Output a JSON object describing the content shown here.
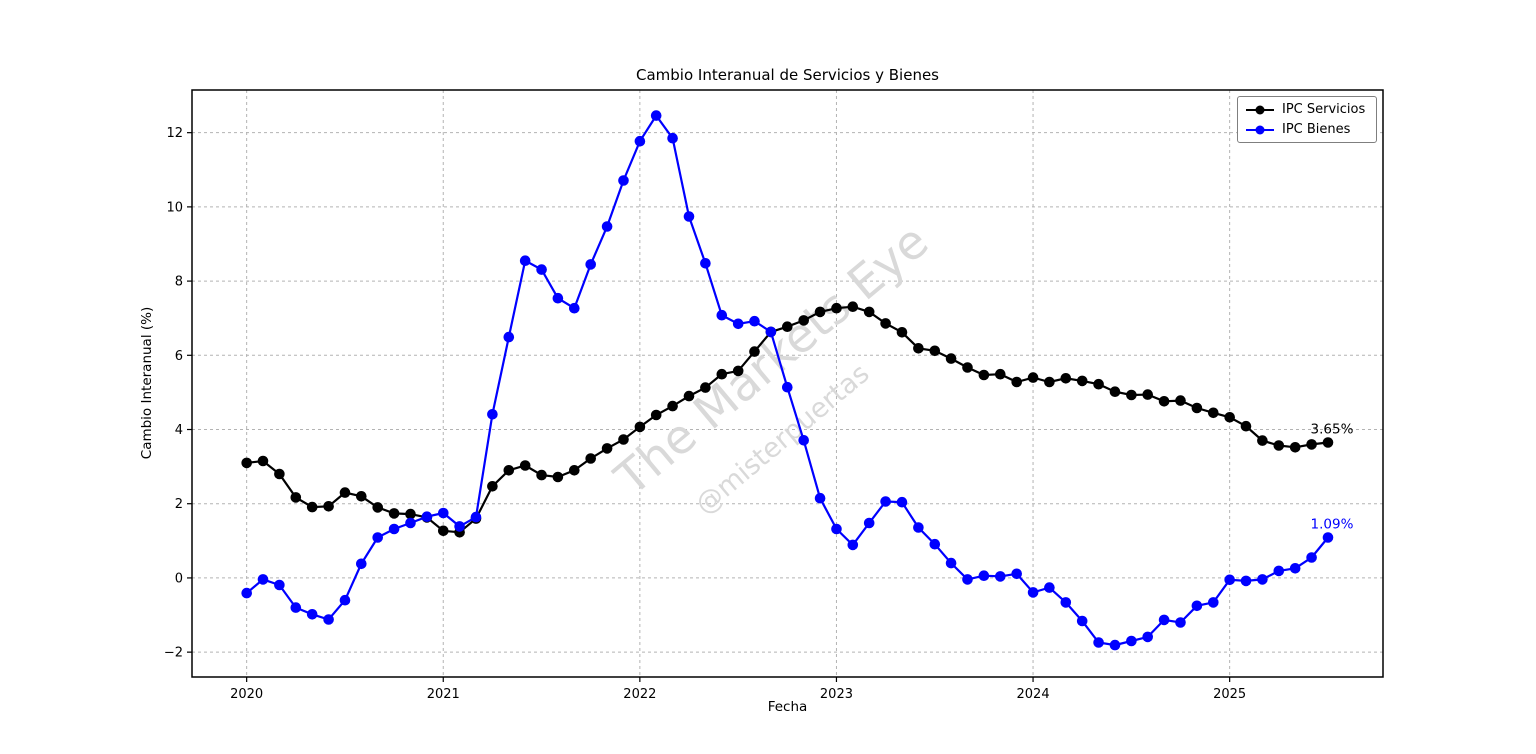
{
  "chart_data": {
    "type": "line",
    "title": "Cambio Interanual de Servicios y Bienes",
    "xlabel": "Fecha",
    "ylabel": "Cambio Interanual (%)",
    "x_start": "2020-01",
    "x_end": "2025-07",
    "x_frequency": "monthly",
    "xticks": [
      2020,
      2021,
      2022,
      2023,
      2024,
      2025
    ],
    "yticks": [
      -2,
      0,
      2,
      4,
      6,
      8,
      10,
      12
    ],
    "xlim_years": [
      2019.722,
      2025.78
    ],
    "ylim": [
      -2.67,
      13.15
    ],
    "grid": true,
    "grid_style": "dashed",
    "legend_position": "top-right",
    "watermark": [
      "The Markets Eye",
      "@misterpuertas"
    ],
    "watermark_color": "#d9d9d9",
    "months": [
      "2020-01",
      "2020-02",
      "2020-03",
      "2020-04",
      "2020-05",
      "2020-06",
      "2020-07",
      "2020-08",
      "2020-09",
      "2020-10",
      "2020-11",
      "2020-12",
      "2021-01",
      "2021-02",
      "2021-03",
      "2021-04",
      "2021-05",
      "2021-06",
      "2021-07",
      "2021-08",
      "2021-09",
      "2021-10",
      "2021-11",
      "2021-12",
      "2022-01",
      "2022-02",
      "2022-03",
      "2022-04",
      "2022-05",
      "2022-06",
      "2022-07",
      "2022-08",
      "2022-09",
      "2022-10",
      "2022-11",
      "2022-12",
      "2023-01",
      "2023-02",
      "2023-03",
      "2023-04",
      "2023-05",
      "2023-06",
      "2023-07",
      "2023-08",
      "2023-09",
      "2023-10",
      "2023-11",
      "2023-12",
      "2024-01",
      "2024-02",
      "2024-03",
      "2024-04",
      "2024-05",
      "2024-06",
      "2024-07",
      "2024-08",
      "2024-09",
      "2024-10",
      "2024-11",
      "2024-12",
      "2025-01",
      "2025-02",
      "2025-03",
      "2025-04",
      "2025-05",
      "2025-06",
      "2025-07"
    ],
    "series": [
      {
        "name": "IPC Servicios",
        "color": "#000000",
        "end_label": "3.65%",
        "values": [
          3.1,
          3.15,
          2.8,
          2.17,
          1.91,
          1.93,
          2.3,
          2.2,
          1.9,
          1.74,
          1.72,
          1.63,
          1.27,
          1.23,
          1.6,
          2.47,
          2.9,
          3.03,
          2.77,
          2.72,
          2.9,
          3.22,
          3.49,
          3.73,
          4.07,
          4.39,
          4.63,
          4.9,
          5.13,
          5.49,
          5.58,
          6.1,
          6.63,
          6.77,
          6.94,
          7.17,
          7.27,
          7.31,
          7.17,
          6.86,
          6.62,
          6.19,
          6.12,
          5.91,
          5.67,
          5.47,
          5.49,
          5.28,
          5.4,
          5.28,
          5.38,
          5.31,
          5.22,
          5.02,
          4.93,
          4.94,
          4.76,
          4.78,
          4.58,
          4.45,
          4.33,
          4.09,
          3.7,
          3.57,
          3.52,
          3.6,
          3.65
        ]
      },
      {
        "name": "IPC Bienes",
        "color": "#0000ff",
        "end_label": "1.09%",
        "values": [
          -0.41,
          -0.04,
          -0.19,
          -0.8,
          -0.98,
          -1.12,
          -0.6,
          0.38,
          1.09,
          1.32,
          1.48,
          1.65,
          1.75,
          1.39,
          1.64,
          4.41,
          6.49,
          8.55,
          8.31,
          7.54,
          7.27,
          8.45,
          9.47,
          10.71,
          11.77,
          12.46,
          11.85,
          9.74,
          8.48,
          7.08,
          6.85,
          6.92,
          6.63,
          5.14,
          3.71,
          2.15,
          1.32,
          0.89,
          1.48,
          2.06,
          2.04,
          1.36,
          0.91,
          0.4,
          -0.04,
          0.06,
          0.04,
          0.11,
          -0.39,
          -0.26,
          -0.66,
          -1.16,
          -1.74,
          -1.81,
          -1.7,
          -1.59,
          -1.13,
          -1.2,
          -0.75,
          -0.66,
          -0.05,
          -0.08,
          -0.04,
          0.19,
          0.26,
          0.55,
          1.09
        ]
      }
    ]
  }
}
